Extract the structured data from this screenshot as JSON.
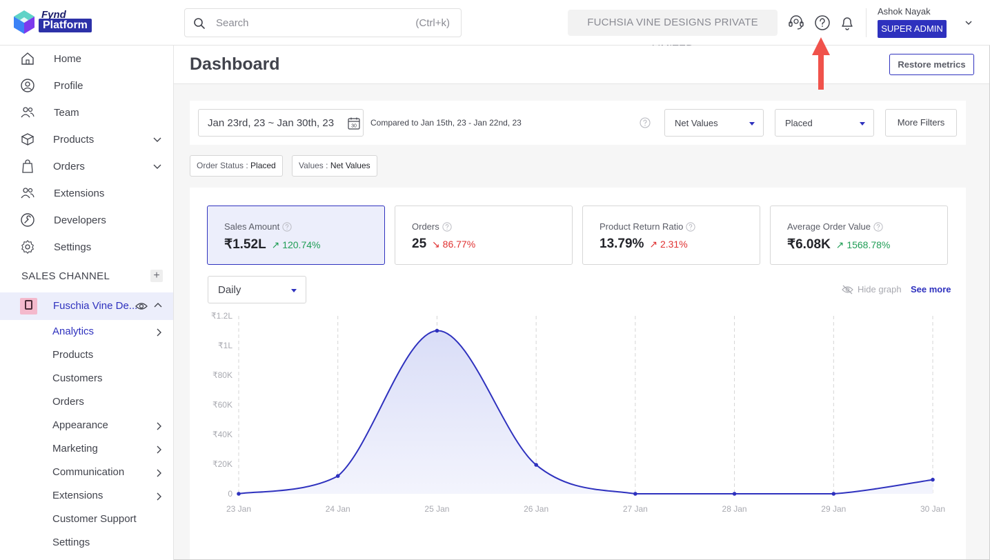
{
  "header": {
    "logo_top": "Fynd",
    "logo_word": "Platform",
    "search_placeholder": "Search",
    "search_shortcut": "(Ctrl+k)",
    "company": "FUCHSIA VINE DESIGNS PRIVATE LIMITED",
    "user_name": "Ashok Nayak",
    "role": "SUPER ADMIN",
    "icons": [
      "support-icon",
      "help-icon",
      "bell-icon",
      "chevron-down-icon"
    ]
  },
  "sidebar": {
    "items": [
      {
        "label": "Home",
        "icon": "home-icon"
      },
      {
        "label": "Profile",
        "icon": "profile-icon"
      },
      {
        "label": "Team",
        "icon": "team-icon"
      },
      {
        "label": "Products",
        "icon": "box-icon",
        "expandable": true
      },
      {
        "label": "Orders",
        "icon": "bag-icon",
        "expandable": true
      },
      {
        "label": "Extensions",
        "icon": "extensions-icon"
      },
      {
        "label": "Developers",
        "icon": "developers-icon"
      },
      {
        "label": "Settings",
        "icon": "settings-icon"
      }
    ],
    "section_title": "SALES CHANNEL",
    "channel_name": "Fuschia Vine De...",
    "sub_items": [
      {
        "label": "Analytics",
        "active": true,
        "chevron": true
      },
      {
        "label": "Products",
        "chevron": false
      },
      {
        "label": "Customers",
        "chevron": false
      },
      {
        "label": "Orders",
        "chevron": false
      },
      {
        "label": "Appearance",
        "chevron": true
      },
      {
        "label": "Marketing",
        "chevron": true
      },
      {
        "label": "Communication",
        "chevron": true
      },
      {
        "label": "Extensions",
        "chevron": true
      },
      {
        "label": "Customer Support",
        "chevron": false
      },
      {
        "label": "Settings",
        "chevron": false
      }
    ]
  },
  "main": {
    "title": "Dashboard",
    "restore_label": "Restore metrics",
    "filters": {
      "date_range": "Jan 23rd, 23 ~ Jan 30th, 23",
      "calendar_day": "30",
      "compare_text": "Compared to Jan 15th, 23 - Jan 22nd, 23",
      "values_select": "Net Values",
      "status_select": "Placed",
      "more_filters": "More Filters"
    },
    "chips": [
      {
        "key": "Order Status : ",
        "value": "Placed"
      },
      {
        "key": "Values : ",
        "value": "Net Values"
      }
    ],
    "metrics": [
      {
        "label": "Sales Amount",
        "value": "₹1.52L",
        "change": "120.74%",
        "direction": "up",
        "active": true
      },
      {
        "label": "Orders",
        "value": "25",
        "change": "86.77%",
        "direction": "down",
        "active": false
      },
      {
        "label": "Product Return Ratio",
        "value": "13.79%",
        "change": "2.31%",
        "direction": "up",
        "active": false
      },
      {
        "label": "Average Order Value",
        "value": "₹6.08K",
        "change": "1568.78%",
        "direction": "up",
        "active": false
      }
    ],
    "granularity": "Daily",
    "hide_graph": "Hide graph",
    "see_more": "See more"
  },
  "colors": {
    "accent": "#2e31be",
    "up": "#1f9d55",
    "down": "#e03131",
    "annotation_arrow": "#f0524b"
  },
  "chart_data": {
    "type": "area",
    "x": [
      "23 Jan",
      "24 Jan",
      "25 Jan",
      "26 Jan",
      "27 Jan",
      "28 Jan",
      "29 Jan",
      "30 Jan"
    ],
    "series": [
      {
        "values": [
          0,
          12000,
          110000,
          19500,
          0,
          0,
          0,
          9500
        ]
      }
    ],
    "y_ticks": [
      "0",
      "₹20K",
      "₹40K",
      "₹60K",
      "₹80K",
      "₹1L",
      "₹1.2L"
    ],
    "ylim": [
      0,
      120000
    ],
    "grid": "vertical dashed",
    "xlabel": "",
    "ylabel": ""
  }
}
